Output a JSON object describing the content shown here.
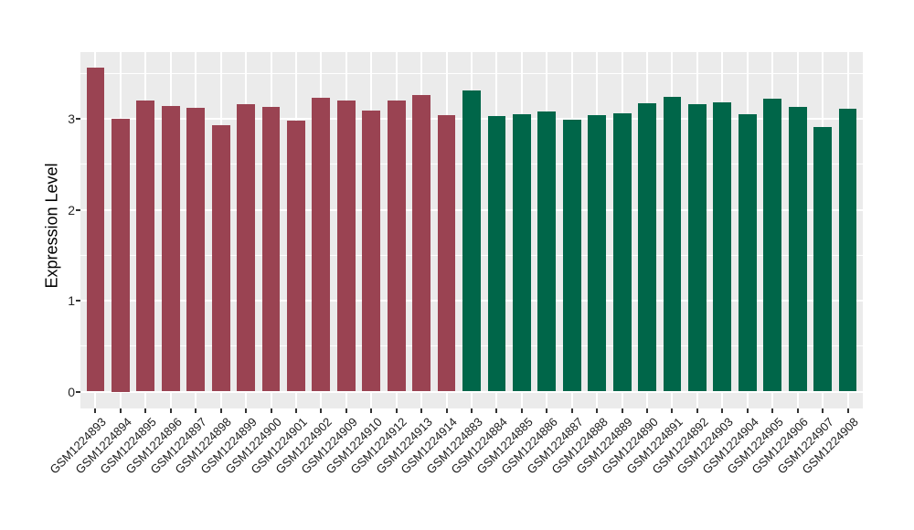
{
  "chart_data": {
    "type": "bar",
    "title": "",
    "xlabel": "",
    "ylabel": "Expression Level",
    "ylim": [
      0,
      3.72
    ],
    "yticks": [
      0,
      1,
      2,
      3
    ],
    "yticks_minor": [
      0.5,
      1.5,
      2.5,
      3.5
    ],
    "legend_position": "none",
    "grid": "gray panel, white major+minor horizontal gridlines, white vertical gridline at each category",
    "groups": {
      "left": {
        "color": "#9a4352"
      },
      "right": {
        "color": "#006649"
      }
    },
    "bars": [
      {
        "label": "GSM1224893",
        "value": 3.56,
        "group": "left"
      },
      {
        "label": "GSM1224894",
        "value": 3.0,
        "group": "left"
      },
      {
        "label": "GSM1224895",
        "value": 3.2,
        "group": "left"
      },
      {
        "label": "GSM1224896",
        "value": 3.14,
        "group": "left"
      },
      {
        "label": "GSM1224897",
        "value": 3.12,
        "group": "left"
      },
      {
        "label": "GSM1224898",
        "value": 2.93,
        "group": "left"
      },
      {
        "label": "GSM1224899",
        "value": 3.16,
        "group": "left"
      },
      {
        "label": "GSM1224900",
        "value": 3.13,
        "group": "left"
      },
      {
        "label": "GSM1224901",
        "value": 2.98,
        "group": "left"
      },
      {
        "label": "GSM1224902",
        "value": 3.23,
        "group": "left"
      },
      {
        "label": "GSM1224909",
        "value": 3.2,
        "group": "left"
      },
      {
        "label": "GSM1224910",
        "value": 3.09,
        "group": "left"
      },
      {
        "label": "GSM1224912",
        "value": 3.2,
        "group": "left"
      },
      {
        "label": "GSM1224913",
        "value": 3.26,
        "group": "left"
      },
      {
        "label": "GSM1224914",
        "value": 3.04,
        "group": "left"
      },
      {
        "label": "GSM1224883",
        "value": 3.31,
        "group": "right"
      },
      {
        "label": "GSM1224884",
        "value": 3.03,
        "group": "right"
      },
      {
        "label": "GSM1224885",
        "value": 3.05,
        "group": "right"
      },
      {
        "label": "GSM1224886",
        "value": 3.08,
        "group": "right"
      },
      {
        "label": "GSM1224887",
        "value": 2.99,
        "group": "right"
      },
      {
        "label": "GSM1224888",
        "value": 3.04,
        "group": "right"
      },
      {
        "label": "GSM1224889",
        "value": 3.06,
        "group": "right"
      },
      {
        "label": "GSM1224890",
        "value": 3.17,
        "group": "right"
      },
      {
        "label": "GSM1224891",
        "value": 3.24,
        "group": "right"
      },
      {
        "label": "GSM1224892",
        "value": 3.16,
        "group": "right"
      },
      {
        "label": "GSM1224903",
        "value": 3.18,
        "group": "right"
      },
      {
        "label": "GSM1224904",
        "value": 3.05,
        "group": "right"
      },
      {
        "label": "GSM1224905",
        "value": 3.22,
        "group": "right"
      },
      {
        "label": "GSM1224906",
        "value": 3.13,
        "group": "right"
      },
      {
        "label": "GSM1224907",
        "value": 2.91,
        "group": "right"
      },
      {
        "label": "GSM1224908",
        "value": 3.11,
        "group": "right"
      }
    ]
  },
  "colors": {
    "panel_background": "#ebebeb",
    "gridline": "#ffffff",
    "bar_left_group": "#9a4352",
    "bar_right_group": "#006649",
    "axis_text": "#1a1a1a",
    "tick_mark": "#333333",
    "figure_background": "#ffffff"
  }
}
